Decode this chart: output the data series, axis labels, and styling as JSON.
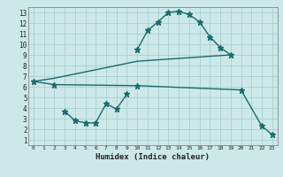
{
  "title": "",
  "xlabel": "Humidex (Indice chaleur)",
  "bg_color": "#cce8e8",
  "grid_color": "#aacfcf",
  "line_color": "#1a6b6b",
  "xlim": [
    -0.5,
    23.5
  ],
  "ylim": [
    0.5,
    13.5
  ],
  "xticks": [
    0,
    1,
    2,
    3,
    4,
    5,
    6,
    7,
    8,
    9,
    10,
    11,
    12,
    13,
    14,
    15,
    16,
    17,
    18,
    19,
    20,
    21,
    22,
    23
  ],
  "yticks": [
    1,
    2,
    3,
    4,
    5,
    6,
    7,
    8,
    9,
    10,
    11,
    12,
    13
  ],
  "line1_x": [
    10,
    11,
    12,
    13,
    14,
    15,
    16,
    17,
    18,
    19
  ],
  "line1_y": [
    9.5,
    11.3,
    12.1,
    13.0,
    13.1,
    12.8,
    12.1,
    10.7,
    9.7,
    9.0
  ],
  "line2_x": [
    0,
    2,
    10,
    19
  ],
  "line2_y": [
    6.5,
    6.8,
    8.4,
    9.0
  ],
  "line3_x": [
    0,
    2,
    10,
    20,
    22,
    23
  ],
  "line3_y": [
    6.5,
    6.2,
    6.1,
    5.7,
    2.3,
    1.5
  ],
  "line4_x": [
    3,
    4,
    5,
    6,
    7,
    8,
    9
  ],
  "line4_y": [
    3.7,
    2.8,
    2.6,
    2.6,
    4.4,
    3.9,
    5.3
  ],
  "marker_size": 3.5,
  "line_width": 1.0
}
